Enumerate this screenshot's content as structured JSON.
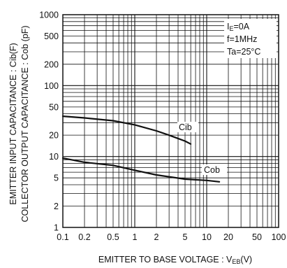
{
  "chart_data": {
    "type": "line",
    "xscale": "log",
    "yscale": "log",
    "xlim": [
      0.1,
      100
    ],
    "ylim": [
      1,
      1000
    ],
    "grid": true,
    "xlabel": "EMITTER TO BASE VOLTAGE : VEB(V)",
    "xlabel_main": "EMITTER TO BASE VOLTAGE : V",
    "xlabel_sub": "EB",
    "xlabel_unit": "(V)",
    "ylabel_line1": "EMITTER INPUT CAPACITANCE : Cib(F)",
    "ylabel_line2": "COLLECTOR OUTPUT CAPACITANCE : Cob (pF)",
    "xticks": [
      0.1,
      0.2,
      0.5,
      1,
      2,
      5,
      10,
      20,
      50,
      100
    ],
    "xtick_labels": [
      "0.1",
      "0.2",
      "0.5",
      "1",
      "2",
      "5",
      "10",
      "20",
      "50",
      "100"
    ],
    "yticks": [
      1,
      2,
      5,
      10,
      20,
      50,
      100,
      200,
      500,
      1000
    ],
    "ytick_labels": [
      "1",
      "2",
      "5",
      "10",
      "20",
      "50",
      "100",
      "200",
      "500",
      "1000"
    ],
    "conditions": {
      "ie_main": "I",
      "ie_sub": "E",
      "ie_rest": "=0A",
      "freq": "f=1MHz",
      "temp": "Ta=25°C"
    },
    "series": [
      {
        "name": "Cib",
        "color": "#111111",
        "x": [
          0.1,
          0.2,
          0.5,
          1,
          2,
          3,
          5,
          6
        ],
        "y": [
          37,
          35,
          32,
          28,
          23,
          20,
          16.5,
          15
        ]
      },
      {
        "name": "Cob",
        "color": "#111111",
        "x": [
          0.1,
          0.2,
          0.5,
          1,
          2,
          5,
          10,
          15
        ],
        "y": [
          9.5,
          8.3,
          7.5,
          6.4,
          5.5,
          4.8,
          4.6,
          4.4
        ]
      }
    ]
  }
}
